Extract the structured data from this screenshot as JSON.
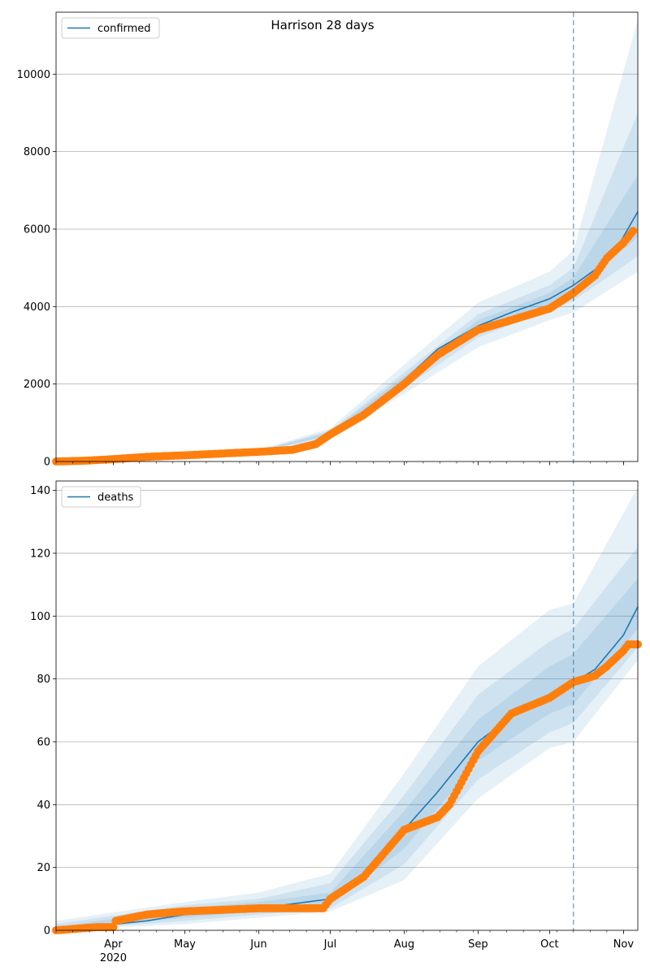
{
  "title": "Harrison 28 days",
  "colors": {
    "model": "#1f77b4",
    "observed": "#ff7f0e",
    "band": "#1f77b4",
    "vline": "#1f77b4",
    "grid": "#b0b0b0"
  },
  "x_tick_labels": [
    "Apr",
    "May",
    "Jun",
    "Jul",
    "Aug",
    "Sep",
    "Oct",
    "Nov"
  ],
  "x_year_label": "2020",
  "chart_data": [
    {
      "type": "line",
      "name": "confirmed",
      "legend": "confirmed",
      "x_range": [
        "2020-03-08",
        "2020-11-07"
      ],
      "ylim": [
        0,
        11600
      ],
      "y_ticks": [
        0,
        2000,
        4000,
        6000,
        8000,
        10000
      ],
      "grid": true,
      "legend_position": "top-left",
      "forecast_start": "2020-10-11",
      "model_line": {
        "x": [
          "2020-03-08",
          "2020-04-01",
          "2020-05-01",
          "2020-06-01",
          "2020-06-20",
          "2020-07-01",
          "2020-07-15",
          "2020-08-01",
          "2020-08-15",
          "2020-09-01",
          "2020-09-15",
          "2020-10-01",
          "2020-10-11",
          "2020-10-20",
          "2020-10-31",
          "2020-11-07"
        ],
        "y": [
          0,
          70,
          180,
          260,
          400,
          720,
          1250,
          2100,
          2900,
          3500,
          3850,
          4200,
          4550,
          4950,
          5700,
          6450
        ]
      },
      "bands": [
        {
          "x": [
            "2020-03-08",
            "2020-06-01",
            "2020-07-01",
            "2020-08-01",
            "2020-09-01",
            "2020-10-01",
            "2020-10-11",
            "2020-11-07"
          ],
          "lower": [
            0,
            230,
            600,
            1750,
            2950,
            3650,
            3850,
            4900
          ],
          "upper": [
            20,
            300,
            860,
            2500,
            4100,
            4900,
            5450,
            11400
          ]
        },
        {
          "x": [
            "2020-03-08",
            "2020-06-01",
            "2020-07-01",
            "2020-08-01",
            "2020-09-01",
            "2020-10-01",
            "2020-10-11",
            "2020-11-07"
          ],
          "lower": [
            0,
            240,
            650,
            1900,
            3200,
            3900,
            4150,
            5300
          ],
          "upper": [
            15,
            285,
            800,
            2300,
            3800,
            4550,
            5000,
            9000
          ]
        },
        {
          "x": [
            "2020-03-08",
            "2020-06-01",
            "2020-07-01",
            "2020-08-01",
            "2020-09-01",
            "2020-10-01",
            "2020-10-11",
            "2020-11-07"
          ],
          "lower": [
            0,
            250,
            690,
            2000,
            3350,
            4050,
            4350,
            5800
          ],
          "upper": [
            10,
            270,
            760,
            2200,
            3650,
            4350,
            4750,
            7400
          ]
        }
      ],
      "observed": {
        "x": [
          "2020-03-08",
          "2020-03-20",
          "2020-04-01",
          "2020-04-15",
          "2020-05-01",
          "2020-05-15",
          "2020-06-01",
          "2020-06-15",
          "2020-06-25",
          "2020-07-01",
          "2020-07-15",
          "2020-08-01",
          "2020-08-15",
          "2020-09-01",
          "2020-09-15",
          "2020-10-01",
          "2020-10-11",
          "2020-10-20",
          "2020-10-25",
          "2020-11-01",
          "2020-11-05"
        ],
        "y": [
          0,
          20,
          60,
          120,
          160,
          200,
          250,
          300,
          450,
          700,
          1200,
          2000,
          2750,
          3400,
          3650,
          3950,
          4350,
          4800,
          5250,
          5650,
          5950
        ]
      }
    },
    {
      "type": "line",
      "name": "deaths",
      "legend": "deaths",
      "x_range": [
        "2020-03-08",
        "2020-11-07"
      ],
      "ylim": [
        0,
        143
      ],
      "y_ticks": [
        0,
        20,
        40,
        60,
        80,
        100,
        120,
        140
      ],
      "grid": true,
      "legend_position": "top-left",
      "forecast_start": "2020-10-11",
      "model_line": {
        "x": [
          "2020-03-08",
          "2020-04-15",
          "2020-05-01",
          "2020-06-01",
          "2020-07-01",
          "2020-07-15",
          "2020-08-01",
          "2020-08-15",
          "2020-09-01",
          "2020-09-15",
          "2020-10-01",
          "2020-10-11",
          "2020-10-20",
          "2020-11-01",
          "2020-11-05",
          "2020-11-07"
        ],
        "y": [
          0,
          3,
          5,
          7,
          10,
          16,
          32,
          44,
          60,
          68,
          75,
          79,
          83,
          94,
          100,
          103
        ]
      },
      "bands": [
        {
          "x": [
            "2020-03-08",
            "2020-05-01",
            "2020-06-01",
            "2020-07-01",
            "2020-08-01",
            "2020-09-01",
            "2020-10-01",
            "2020-10-11",
            "2020-11-07"
          ],
          "lower": [
            0,
            2,
            4,
            6,
            16,
            42,
            58,
            60,
            86
          ],
          "upper": [
            3,
            9,
            12,
            18,
            50,
            84,
            102,
            104,
            141
          ]
        },
        {
          "x": [
            "2020-03-08",
            "2020-05-01",
            "2020-06-01",
            "2020-07-01",
            "2020-08-01",
            "2020-09-01",
            "2020-10-01",
            "2020-10-11",
            "2020-11-07"
          ],
          "lower": [
            0,
            3,
            5,
            7,
            21,
            48,
            63,
            66,
            90
          ],
          "upper": [
            2,
            8,
            10,
            15,
            43,
            75,
            92,
            96,
            122
          ]
        },
        {
          "x": [
            "2020-03-08",
            "2020-05-01",
            "2020-06-01",
            "2020-07-01",
            "2020-08-01",
            "2020-09-01",
            "2020-10-01",
            "2020-10-11",
            "2020-11-07"
          ],
          "lower": [
            0,
            4,
            6,
            8,
            26,
            54,
            69,
            72,
            96
          ],
          "upper": [
            1,
            7,
            9,
            12,
            38,
            67,
            84,
            88,
            112
          ]
        }
      ],
      "observed": {
        "x": [
          "2020-03-08",
          "2020-03-25",
          "2020-04-01",
          "2020-04-02",
          "2020-04-15",
          "2020-04-30",
          "2020-06-01",
          "2020-06-28",
          "2020-07-01",
          "2020-07-15",
          "2020-08-01",
          "2020-08-15",
          "2020-08-20",
          "2020-09-01",
          "2020-09-15",
          "2020-10-01",
          "2020-10-11",
          "2020-10-20",
          "2020-10-25",
          "2020-11-01",
          "2020-11-03",
          "2020-11-07"
        ],
        "y": [
          0,
          1,
          1,
          3,
          5,
          6,
          7,
          7,
          10,
          17,
          32,
          36,
          40,
          57,
          69,
          74,
          79,
          81,
          84,
          89,
          91,
          91
        ]
      }
    }
  ]
}
